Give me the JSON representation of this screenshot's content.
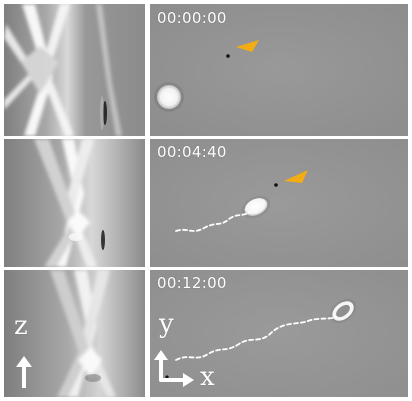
{
  "figure": {
    "rows": [
      {
        "timestamp": "00:00:00",
        "has_arrowhead": true,
        "has_trail": false
      },
      {
        "timestamp": "00:04:40",
        "has_arrowhead": true,
        "has_trail": true
      },
      {
        "timestamp": "00:12:00",
        "has_arrowhead": false,
        "has_trail": true
      }
    ],
    "left_axis_label": "z",
    "right_axis_label_y": "y",
    "right_axis_label_x": "x"
  },
  "colors": {
    "background": "#ffffff",
    "panel_gray": "#8f8f8f",
    "label_white": "#ffffff",
    "arrowhead_orange": "#f3ad12",
    "trail_white": "#ffffff"
  },
  "icons": {
    "arrowhead": "triangle-arrowhead-icon",
    "axis_arrow": "arrow-icon"
  }
}
